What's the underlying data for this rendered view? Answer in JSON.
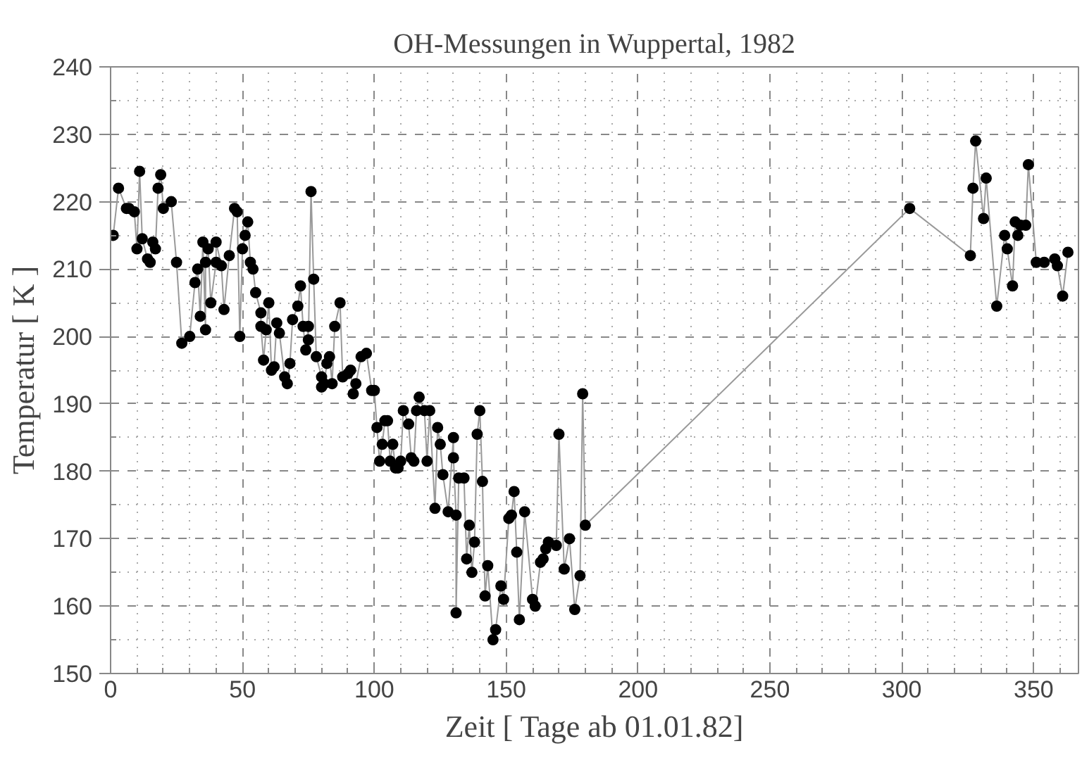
{
  "chart_data": {
    "type": "line",
    "title": "OH-Messungen in Wuppertal, 1982",
    "xlabel": "Zeit [ Tage ab 01.01.82]",
    "ylabel": "Temperatur [ K ]",
    "xlim": [
      0,
      367
    ],
    "ylim": [
      150,
      240
    ],
    "xticks": [
      0,
      50,
      100,
      150,
      200,
      250,
      300,
      350
    ],
    "yticks": [
      150,
      160,
      170,
      180,
      190,
      200,
      210,
      220,
      230,
      240
    ],
    "grid": true,
    "marker": "circle",
    "line_style": "solid",
    "series": [
      {
        "color": "#999999",
        "x": [
          1,
          3,
          6,
          7,
          9,
          10,
          11,
          12,
          14,
          15,
          16,
          17,
          18,
          19,
          20,
          23,
          25,
          27,
          30,
          32,
          33,
          34,
          35,
          36,
          36,
          37,
          38,
          40,
          40,
          42,
          43,
          45,
          47,
          48,
          49,
          50,
          51,
          52,
          53,
          54,
          55,
          57,
          57,
          58,
          59,
          60,
          61,
          62,
          63,
          64,
          66,
          67,
          68,
          69,
          71,
          72,
          73,
          74,
          75,
          75,
          76,
          77,
          78,
          80,
          80,
          81,
          82,
          83,
          84,
          85,
          87,
          88,
          90,
          91,
          92,
          93,
          95,
          97,
          99,
          100,
          101,
          102,
          103,
          104,
          105,
          106,
          107,
          108,
          109,
          110,
          111,
          113,
          114,
          115,
          116,
          117,
          119,
          120,
          121,
          123,
          124,
          125,
          126,
          128,
          130,
          130,
          131,
          131,
          132,
          134,
          135,
          136,
          137,
          138,
          139,
          140,
          141,
          142,
          143,
          145,
          146,
          148,
          149,
          151,
          152,
          153,
          154,
          155,
          157,
          160,
          161,
          163,
          164,
          165,
          166,
          169,
          170,
          172,
          174,
          176,
          178,
          179,
          180,
          303,
          326,
          327,
          328,
          331,
          332,
          336,
          339,
          340,
          342,
          343,
          344,
          345,
          347,
          348,
          351,
          354,
          358,
          359,
          361,
          363
        ],
        "values": [
          215,
          222,
          219,
          219,
          218.5,
          213,
          224.5,
          214.5,
          211.5,
          211,
          214,
          213,
          222,
          224,
          219,
          220,
          211,
          199,
          200,
          208,
          210,
          203,
          214,
          201,
          211,
          213,
          205,
          211,
          214,
          210.5,
          204,
          212,
          219,
          218.5,
          200,
          213,
          215,
          217,
          211,
          210,
          206.5,
          203.5,
          201.5,
          196.5,
          201,
          205,
          195,
          195.5,
          202,
          200.5,
          194,
          193,
          196,
          202.5,
          204.5,
          207.5,
          201.5,
          198,
          201.5,
          199.5,
          221.5,
          208.5,
          197,
          194,
          192.5,
          193,
          196,
          197,
          193,
          201.5,
          205,
          194,
          194.5,
          195,
          191.5,
          193,
          197,
          197.5,
          192,
          192,
          186.5,
          181.5,
          184,
          187.5,
          187.5,
          181.5,
          184,
          180.5,
          180.5,
          181.5,
          189,
          187,
          182,
          181.5,
          189,
          191,
          189,
          181.5,
          189,
          174.5,
          186.5,
          184,
          179.5,
          174,
          185,
          182,
          173.5,
          159,
          179,
          179,
          167,
          172,
          165,
          169.5,
          185.5,
          189,
          178.5,
          161.5,
          166,
          155,
          156.5,
          163,
          161,
          173,
          173.5,
          177,
          168,
          158,
          174,
          161,
          160,
          166.5,
          167,
          168.5,
          169.5,
          169,
          185.5,
          165.5,
          170,
          159.5,
          164.5,
          191.5,
          172,
          219,
          212,
          222,
          229,
          217.5,
          223.5,
          204.5,
          215,
          213,
          207.5,
          217,
          215,
          216.5,
          216.5,
          225.5,
          211,
          211,
          211.5,
          210.5,
          206,
          212.5
        ]
      }
    ]
  }
}
